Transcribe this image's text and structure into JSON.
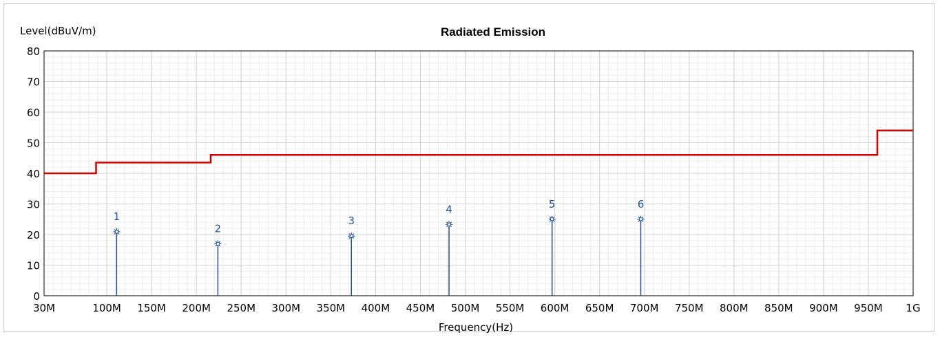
{
  "chart_data": {
    "type": "line",
    "title": "Radiated Emission",
    "ylabel": "Level(dBuV/m)",
    "xlabel": "Frequency(Hz)",
    "xlim": [
      30,
      1000
    ],
    "ylim": [
      0,
      80
    ],
    "grid": true,
    "x_ticks": [
      {
        "value": 30,
        "label": "30M"
      },
      {
        "value": 100,
        "label": "100M"
      },
      {
        "value": 150,
        "label": "150M"
      },
      {
        "value": 200,
        "label": "200M"
      },
      {
        "value": 250,
        "label": "250M"
      },
      {
        "value": 300,
        "label": "300M"
      },
      {
        "value": 350,
        "label": "350M"
      },
      {
        "value": 400,
        "label": "400M"
      },
      {
        "value": 450,
        "label": "450M"
      },
      {
        "value": 500,
        "label": "500M"
      },
      {
        "value": 550,
        "label": "550M"
      },
      {
        "value": 600,
        "label": "600M"
      },
      {
        "value": 650,
        "label": "650M"
      },
      {
        "value": 700,
        "label": "700M"
      },
      {
        "value": 750,
        "label": "750M"
      },
      {
        "value": 800,
        "label": "800M"
      },
      {
        "value": 850,
        "label": "850M"
      },
      {
        "value": 900,
        "label": "900M"
      },
      {
        "value": 950,
        "label": "950M"
      },
      {
        "value": 1000,
        "label": "1G"
      }
    ],
    "y_ticks": [
      {
        "value": 0,
        "label": "0"
      },
      {
        "value": 10,
        "label": "10"
      },
      {
        "value": 20,
        "label": "20"
      },
      {
        "value": 30,
        "label": "30"
      },
      {
        "value": 40,
        "label": "40"
      },
      {
        "value": 50,
        "label": "50"
      },
      {
        "value": 60,
        "label": "60"
      },
      {
        "value": 70,
        "label": "70"
      },
      {
        "value": 80,
        "label": "80"
      }
    ],
    "limit_line": {
      "color": "#d40000",
      "points": [
        [
          30,
          40
        ],
        [
          88,
          40
        ],
        [
          88,
          43.5
        ],
        [
          216,
          43.5
        ],
        [
          216,
          46
        ],
        [
          960,
          46
        ],
        [
          960,
          54
        ],
        [
          1000,
          54
        ]
      ]
    },
    "markers": {
      "color": "#1f4e9a",
      "points": [
        {
          "label": "1",
          "x": 111,
          "y": 20.9
        },
        {
          "label": "2",
          "x": 224,
          "y": 17.0
        },
        {
          "label": "3",
          "x": 373,
          "y": 19.5
        },
        {
          "label": "4",
          "x": 482,
          "y": 23.3
        },
        {
          "label": "5",
          "x": 597,
          "y": 25.0
        },
        {
          "label": "6",
          "x": 696,
          "y": 25.0
        }
      ]
    }
  }
}
